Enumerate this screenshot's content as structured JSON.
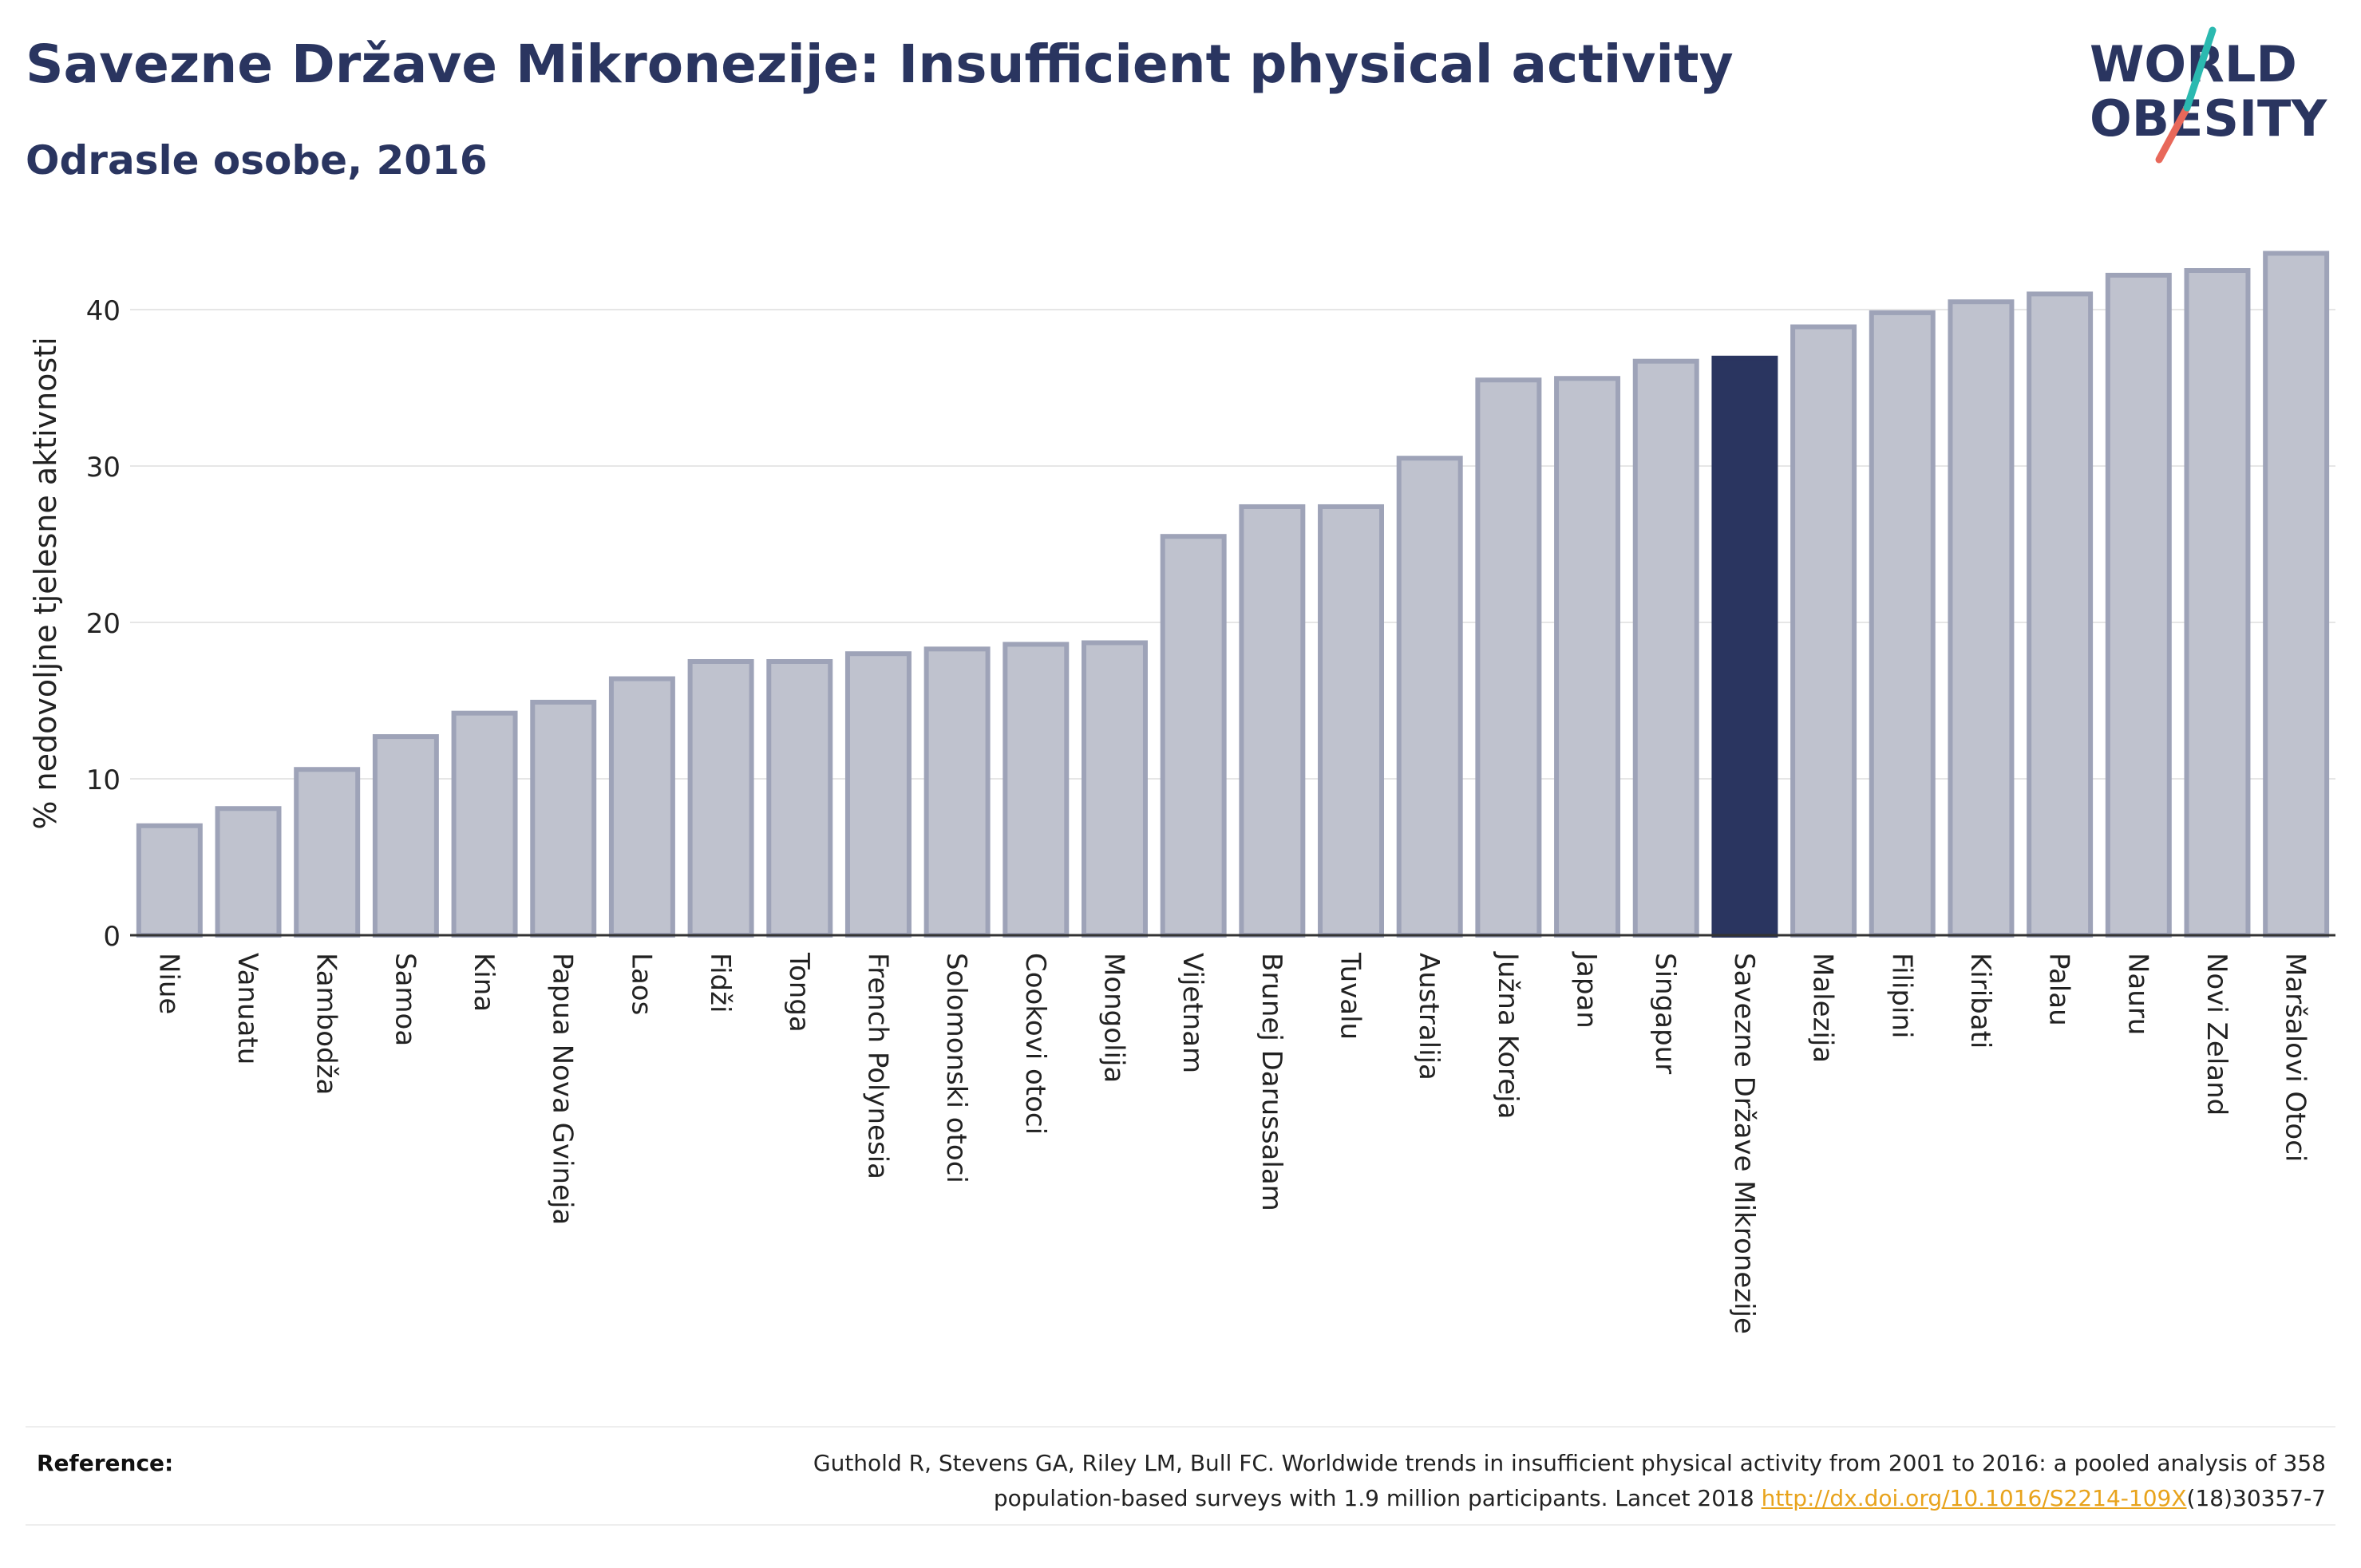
{
  "header": {
    "title": "Savezne Države Mikronezije: Insufficient physical activity",
    "subtitle": "Odrasle osobe, 2016"
  },
  "logo": {
    "line1": "WORLD",
    "line2": "OBESITY",
    "colors": {
      "text": "#2a3560",
      "slash_teal": "#2bb9b0",
      "slash_red": "#e8685a"
    }
  },
  "reference": {
    "label": "Reference:",
    "text_part1": "Guthold R, Stevens GA, Riley LM, Bull FC. Worldwide trends in insufficient physical activity from 2001 to 2016: a pooled analysis of 358",
    "text_part2": "population-based surveys with 1.9 million participants. Lancet 2018 ",
    "link": "http://dx.doi.org/10.1016/S2214-109X",
    "text_part3": "(18)30357-7"
  },
  "chart_data": {
    "type": "bar",
    "ylabel": "% nedovoljne tjelesne aktivnosti",
    "xlabel": "",
    "ylim": [
      0,
      45
    ],
    "yticks": [
      0,
      10,
      20,
      30,
      40
    ],
    "grid": true,
    "highlight": "Savezne Države Mikronezije",
    "colors": {
      "bar": "#bfc2ce",
      "bar_edge": "#9ea3b8",
      "highlight": "#2a3560",
      "grid": "#e6e6e6",
      "axis": "#333333"
    },
    "categories": [
      "Niue",
      "Vanuatu",
      "Kambodža",
      "Samoa",
      "Kina",
      "Papua Nova Gvineja",
      "Laos",
      "Fidži",
      "Tonga",
      "French Polynesia",
      "Solomonski otoci",
      "Cookovi otoci",
      "Mongolija",
      "Vijetnam",
      "Brunej Darussalam",
      "Tuvalu",
      "Australija",
      "Južna Koreja",
      "Japan",
      "Singapur",
      "Savezne Države Mikronezije",
      "Malezija",
      "Filipini",
      "Kiribati",
      "Palau",
      "Nauru",
      "Novi Zeland",
      "Maršalovi Otoci"
    ],
    "values": [
      7.0,
      8.1,
      10.6,
      12.7,
      14.2,
      14.9,
      16.4,
      17.5,
      17.5,
      18.0,
      18.3,
      18.6,
      18.7,
      25.5,
      27.4,
      27.4,
      30.5,
      35.5,
      35.6,
      36.7,
      36.9,
      38.9,
      39.8,
      40.5,
      41.0,
      42.2,
      42.5,
      43.6
    ]
  }
}
